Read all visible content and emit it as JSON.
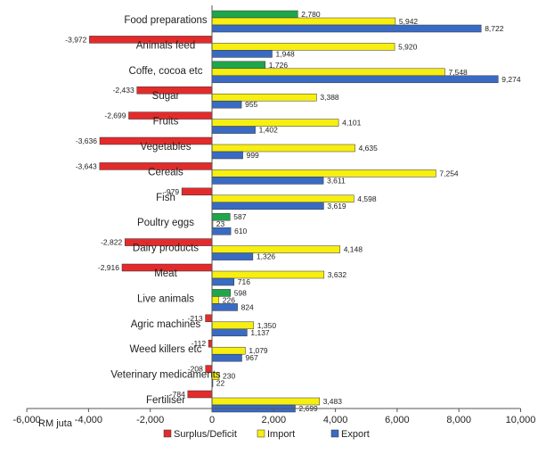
{
  "chart_data": {
    "type": "bar",
    "orientation": "horizontal",
    "xlabel": "RM juta",
    "xlim": [
      -6000,
      10000
    ],
    "xticks": [
      -6000,
      -4000,
      -2000,
      0,
      2000,
      4000,
      6000,
      8000,
      10000
    ],
    "xtick_labels": [
      "-6,000",
      "-4,000",
      "-2,000",
      "0",
      "2,000",
      "4,000",
      "6,000",
      "8,000",
      "10,000"
    ],
    "grid": false,
    "legend_position": "bottom",
    "series_order": [
      "Surplus/Deficit",
      "Import",
      "Export"
    ],
    "categories": [
      {
        "name": "Food preparations",
        "surplus": 2780,
        "import": 5942,
        "export": 8722,
        "surplus_label": "2,780",
        "import_label": "5,942",
        "export_label": "8,722"
      },
      {
        "name": "Animals feed",
        "surplus": -3972,
        "import": 5920,
        "export": 1948,
        "surplus_label": "-3,972",
        "import_label": "5,920",
        "export_label": "1,948"
      },
      {
        "name": "Coffe, cocoa etc",
        "surplus": 1726,
        "import": 7548,
        "export": 9274,
        "surplus_label": "1,726",
        "import_label": "7,548",
        "export_label": "9,274"
      },
      {
        "name": "Sugar",
        "surplus": -2433,
        "import": 3388,
        "export": 955,
        "surplus_label": "-2,433",
        "import_label": "3,388",
        "export_label": "955"
      },
      {
        "name": "Fruits",
        "surplus": -2699,
        "import": 4101,
        "export": 1402,
        "surplus_label": "-2,699",
        "import_label": "4,101",
        "export_label": "1,402"
      },
      {
        "name": "Vegetables",
        "surplus": -3636,
        "import": 4635,
        "export": 999,
        "surplus_label": "-3,636",
        "import_label": "4,635",
        "export_label": "999"
      },
      {
        "name": "Cereals",
        "surplus": -3643,
        "import": 7254,
        "export": 3611,
        "surplus_label": "-3,643",
        "import_label": "7,254",
        "export_label": "3,611"
      },
      {
        "name": "Fish",
        "surplus": -979,
        "import": 4598,
        "export": 3619,
        "surplus_label": "-979",
        "import_label": "4,598",
        "export_label": "3,619"
      },
      {
        "name": "Poultry eggs",
        "surplus": 587,
        "import": 23,
        "export": 610,
        "surplus_label": "587",
        "import_label": "23",
        "export_label": "610"
      },
      {
        "name": "Dairy products",
        "surplus": -2822,
        "import": 4148,
        "export": 1326,
        "surplus_label": "-2,822",
        "import_label": "4,148",
        "export_label": "1,326"
      },
      {
        "name": "Meat",
        "surplus": -2916,
        "import": 3632,
        "export": 716,
        "surplus_label": "-2,916",
        "import_label": "3,632",
        "export_label": "716"
      },
      {
        "name": "Live animals",
        "surplus": 598,
        "import": 226,
        "export": 824,
        "surplus_label": "598",
        "import_label": "226",
        "export_label": "824"
      },
      {
        "name": "Agric machines",
        "surplus": -213,
        "import": 1350,
        "export": 1137,
        "surplus_label": "-213",
        "import_label": "1,350",
        "export_label": "1,137"
      },
      {
        "name": "Weed killers etc",
        "surplus": -112,
        "import": 1079,
        "export": 967,
        "surplus_label": "-112",
        "import_label": "1,079",
        "export_label": "967"
      },
      {
        "name": "Veterinary medicaments",
        "surplus": -208,
        "import": 230,
        "export": 22,
        "surplus_label": "-208",
        "import_label": "230",
        "export_label": "22"
      },
      {
        "name": "Fertiliser",
        "surplus": -784,
        "import": 3483,
        "export": 2699,
        "surplus_label": "-784",
        "import_label": "3,483",
        "export_label": "2,699"
      }
    ],
    "legend": [
      {
        "name": "Surplus/Deficit",
        "color": "#e32b2b"
      },
      {
        "name": "Import",
        "color": "#f7ee12"
      },
      {
        "name": "Export",
        "color": "#3a6bc4"
      }
    ],
    "colors": {
      "surplus_positive": "#1fa64a",
      "surplus_negative": "#e32b2b",
      "import": "#f7ee12",
      "export": "#3a6bc4",
      "bar_outline": "#333333"
    }
  }
}
